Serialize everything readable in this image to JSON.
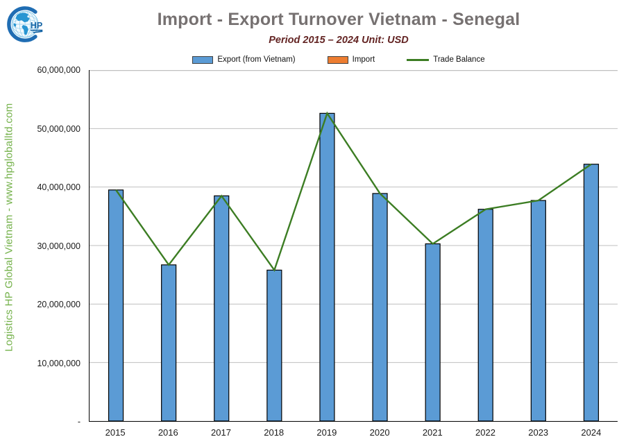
{
  "logo": {
    "monogram": "HP"
  },
  "watermark": "Logistics HP Global Vietnam - www.hpgloballtd.com",
  "header": {
    "title": "Import - Export Turnover Vietnam - Senegal",
    "subtitle": "Period 2015 – 2024  Unit: USD"
  },
  "legend": {
    "items": [
      {
        "label": "Export (from Vietnam)",
        "swatch": "box",
        "color": "#5B9BD5"
      },
      {
        "label": "Import",
        "swatch": "box",
        "color": "#ED7D31"
      },
      {
        "label": "Trade Balance",
        "swatch": "line",
        "color": "#3C7D23"
      }
    ]
  },
  "colors": {
    "export_bar": "#5B9BD5",
    "import_bar": "#ED7D31",
    "trade_balance_line": "#3C7D23",
    "bar_outline": "#000000",
    "gridline": "#BFBFBF",
    "axis": "#000000",
    "title_text": "#767171",
    "subtitle_text": "#632423",
    "watermark_text": "#74B14A"
  },
  "chart_data": {
    "type": "bar",
    "title": "Import - Export Turnover Vietnam - Senegal",
    "subtitle": "Period 2015 – 2024  Unit: USD",
    "unit": "USD",
    "categories": [
      "2015",
      "2016",
      "2017",
      "2018",
      "2019",
      "2020",
      "2021",
      "2022",
      "2023",
      "2024"
    ],
    "series": [
      {
        "name": "Export (from Vietnam)",
        "type": "bar",
        "color": "#5B9BD5",
        "values": [
          39500000,
          26700000,
          38500000,
          25800000,
          52600000,
          38900000,
          30300000,
          36200000,
          37700000,
          43900000
        ]
      },
      {
        "name": "Import",
        "type": "bar",
        "color": "#ED7D31",
        "values": [
          0,
          0,
          0,
          0,
          0,
          0,
          0,
          0,
          0,
          0
        ]
      },
      {
        "name": "Trade Balance",
        "type": "line",
        "color": "#3C7D23",
        "values": [
          39500000,
          26700000,
          38500000,
          25800000,
          52600000,
          38900000,
          30300000,
          36200000,
          37700000,
          43900000
        ]
      }
    ],
    "ylim": [
      0,
      60000000
    ],
    "y_tick_interval": 10000000,
    "y_tick_labels": [
      "60,000,000",
      "50,000,000",
      "40,000,000",
      "30,000,000",
      "20,000,000",
      "10,000,000",
      "-"
    ],
    "grid": "horizontal",
    "legend_position": "top"
  }
}
